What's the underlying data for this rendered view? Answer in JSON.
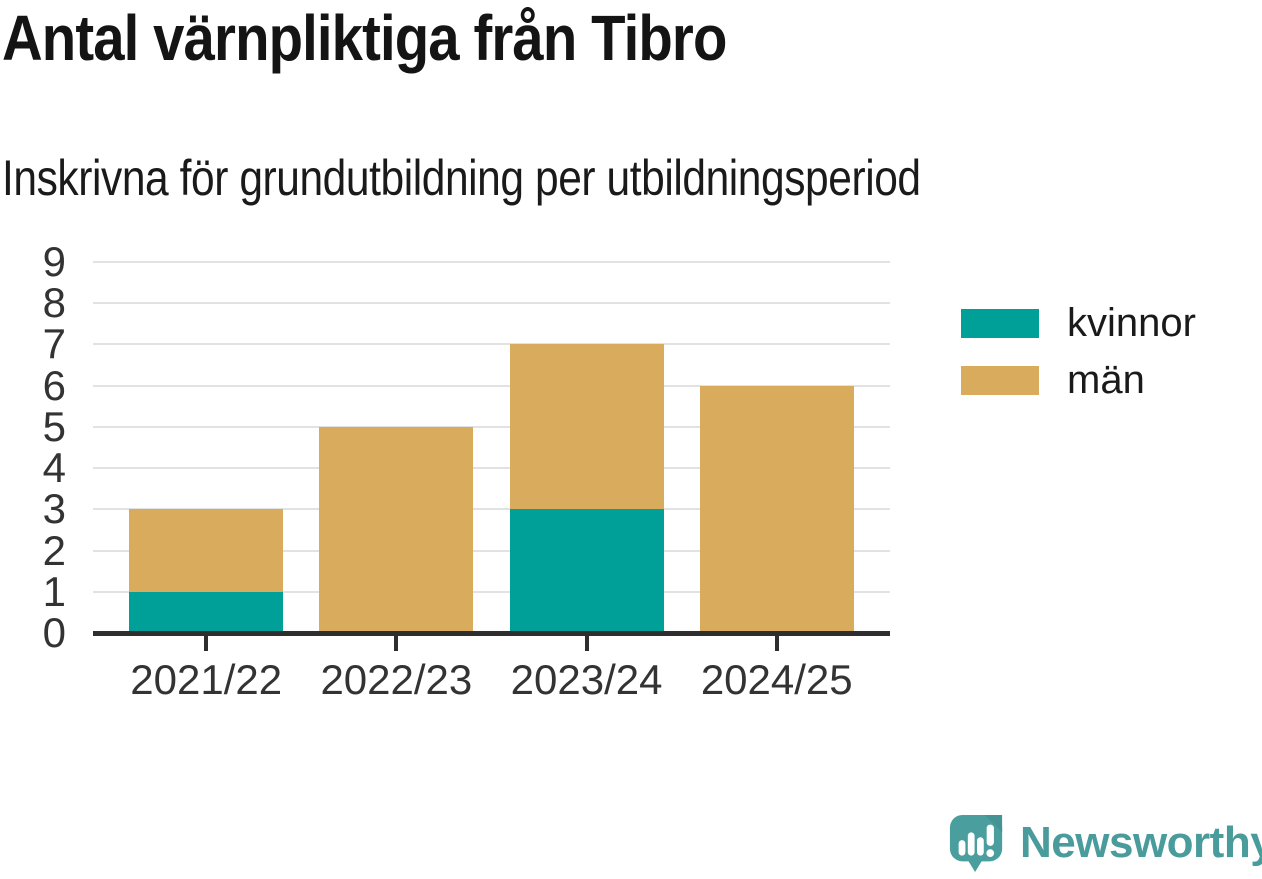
{
  "chart_data": {
    "type": "bar",
    "stacked": true,
    "title": "Antal värnpliktiga från Tibro",
    "subtitle": "Inskrivna för grundutbildning per utbildningsperiod",
    "categories": [
      "2021/22",
      "2022/23",
      "2023/24",
      "2024/25"
    ],
    "series": [
      {
        "name": "kvinnor",
        "color": "#00a099",
        "values": [
          1,
          0,
          3,
          0
        ]
      },
      {
        "name": "män",
        "color": "#d9ab5c",
        "values": [
          2,
          5,
          4,
          6
        ]
      }
    ],
    "totals": [
      3,
      5,
      7,
      6
    ],
    "ylim": [
      0,
      9
    ],
    "yticks": [
      0,
      1,
      2,
      3,
      4,
      5,
      6,
      7,
      8,
      9
    ],
    "grid": true,
    "legend_position": "right",
    "xlabel": "",
    "ylabel": ""
  },
  "footer": {
    "brand": "Newsworthy",
    "brand_color": "#4a9b9c"
  }
}
